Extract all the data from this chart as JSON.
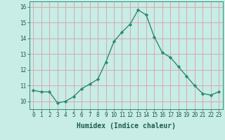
{
  "x": [
    0,
    1,
    2,
    3,
    4,
    5,
    6,
    7,
    8,
    9,
    10,
    11,
    12,
    13,
    14,
    15,
    16,
    17,
    18,
    19,
    20,
    21,
    22,
    23
  ],
  "y": [
    10.7,
    10.6,
    10.6,
    9.9,
    10.0,
    10.3,
    10.8,
    11.1,
    11.4,
    12.5,
    13.8,
    14.4,
    14.9,
    15.8,
    15.5,
    14.1,
    13.1,
    12.8,
    12.2,
    11.6,
    11.0,
    10.5,
    10.4,
    10.6
  ],
  "line_color": "#2e8b72",
  "marker": "D",
  "marker_size": 2.2,
  "linewidth": 1.0,
  "xlabel": "Humidex (Indice chaleur)",
  "xlabel_fontsize": 7,
  "xlabel_color": "#1a5c50",
  "ylim": [
    9.5,
    16.35
  ],
  "xlim": [
    -0.5,
    23.5
  ],
  "yticks": [
    10,
    11,
    12,
    13,
    14,
    15,
    16
  ],
  "xticks": [
    0,
    1,
    2,
    3,
    4,
    5,
    6,
    7,
    8,
    9,
    10,
    11,
    12,
    13,
    14,
    15,
    16,
    17,
    18,
    19,
    20,
    21,
    22,
    23
  ],
  "bg_color": "#c8ece6",
  "grid_color_major": "#d9a0a0",
  "grid_color_minor": "#d9a0a0",
  "tick_color": "#1a5c50",
  "tick_fontsize": 5.5,
  "spine_color": "#2e8b72",
  "label_fontfamily": "monospace"
}
